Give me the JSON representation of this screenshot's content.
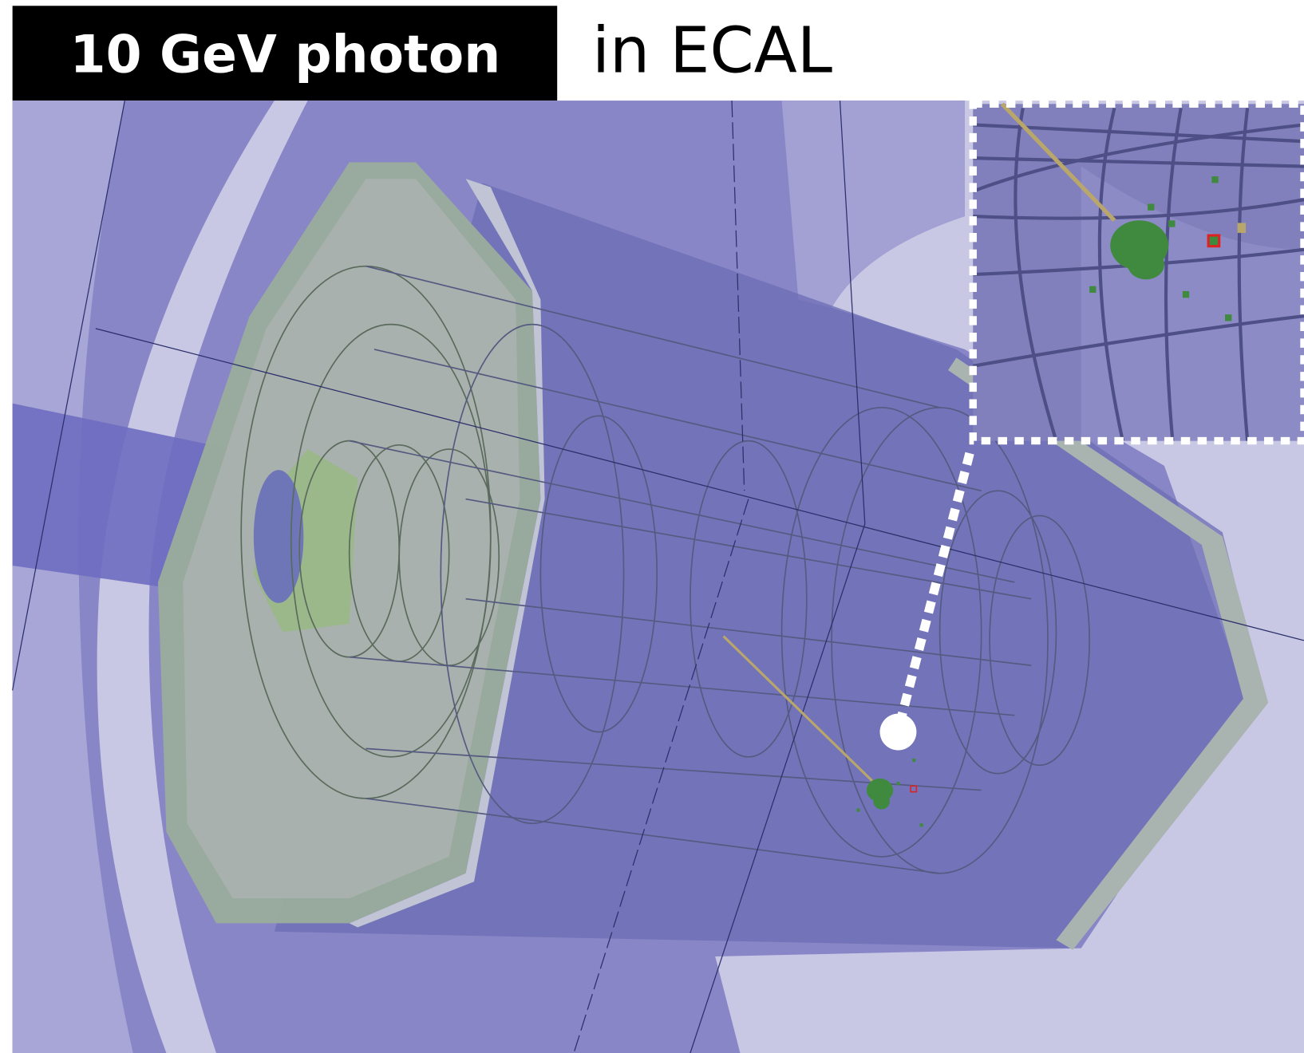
{
  "header": {
    "label": "10 GeV photon",
    "title": "in ECAL"
  }
}
